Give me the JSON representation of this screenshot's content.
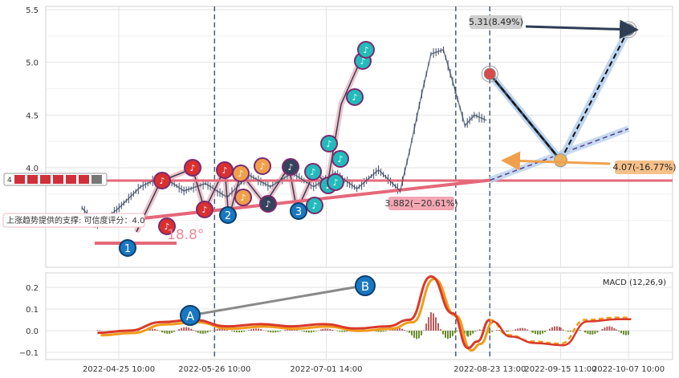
{
  "chart_data": [
    {
      "type": "line",
      "panel": "price",
      "title": "",
      "xlabel": "",
      "ylabel": "",
      "ylim": [
        3.25,
        5.55
      ],
      "yticks": [
        4.0,
        4.5,
        5.0,
        5.5
      ],
      "yticklabels": [
        "4.0",
        "4.5",
        "5.0",
        "5.5"
      ],
      "grid": true,
      "series": [
        {
          "x": [
            "2022-04-13",
            "2022-04-18",
            "2022-04-25",
            "2022-05-02",
            "2022-05-09",
            "2022-05-16",
            "2022-05-23",
            "2022-05-30",
            "2022-06-06",
            "2022-06-13",
            "2022-06-20",
            "2022-06-27",
            "2022-07-04",
            "2022-07-11",
            "2022-07-18",
            "2022-07-25",
            "2022-07-28",
            "2022-08-01",
            "2022-08-04",
            "2022-08-08",
            "2022-08-11",
            "2022-08-15",
            "2022-08-18",
            "2022-08-22"
          ],
          "values": [
            3.62,
            3.45,
            3.62,
            3.82,
            3.92,
            3.78,
            3.85,
            3.72,
            3.93,
            3.82,
            3.95,
            3.82,
            3.95,
            3.8,
            3.98,
            3.78,
            4.15,
            4.7,
            5.08,
            5.12,
            4.82,
            4.4,
            4.5,
            4.45
          ]
        }
      ],
      "trend_lines": [
        {
          "x": [
            "2022-04-25",
            "2022-08-23 13:00"
          ],
          "values": [
            3.47,
            3.882
          ]
        },
        {
          "x": [
            "2022-08-23 13:00",
            "2022-10-07 10:00"
          ],
          "values": [
            3.882,
            4.37
          ]
        }
      ],
      "support_level": 3.9,
      "projection": [
        {
          "x": "2022-08-23 13:00",
          "y": 4.89
        },
        {
          "x": "2022-09-15 11:00",
          "y": 4.07
        },
        {
          "x": "2022-10-07 10:00",
          "y": 5.31
        }
      ],
      "annotations": {
        "target_high": "5.31(8.49%)",
        "target_low": "4.07(-16.77%)",
        "support_value": "3.882(−20.61%)",
        "support_text": "上涨趋势提供的支撑: 可信度评分：4.0",
        "angle_text": "18.8°",
        "legend_value": "4"
      },
      "wave_labels": [
        "1",
        "2",
        "3"
      ]
    },
    {
      "type": "line",
      "panel": "macd",
      "title": "",
      "legend": "MACD (12,26,9)",
      "ylim": [
        -0.13,
        0.28
      ],
      "yticks": [
        -0.1,
        0.0,
        0.1,
        0.2
      ],
      "yticklabels": [
        "−0.1",
        "0.0",
        "0.1",
        "0.2"
      ],
      "grid": true,
      "x_ticks": [
        "2022-04-25 10:00",
        "2022-05-26 10:00",
        "2022-07-01 14:00",
        "2022-08-23 13:00",
        "2022-09-15 11:00",
        "2022-10-07 10:00"
      ],
      "series": [
        {
          "name": "macd",
          "x": [
            "2022-04-18",
            "2022-04-28",
            "2022-05-09",
            "2022-05-19",
            "2022-05-30",
            "2022-06-10",
            "2022-06-20",
            "2022-06-30",
            "2022-07-11",
            "2022-07-21",
            "2022-07-28",
            "2022-08-04",
            "2022-08-11",
            "2022-08-16",
            "2022-08-19",
            "2022-08-23",
            "2022-08-29",
            "2022-09-06",
            "2022-09-15",
            "2022-09-23",
            "2022-10-03",
            "2022-10-07"
          ],
          "values": [
            -0.01,
            0.0,
            0.04,
            0.05,
            0.02,
            0.03,
            0.02,
            0.03,
            0.01,
            0.02,
            0.05,
            0.25,
            0.08,
            -0.08,
            -0.05,
            0.05,
            -0.02,
            -0.05,
            -0.06,
            0.05,
            0.06,
            0.06
          ]
        }
      ],
      "markers": [
        "A",
        "B"
      ]
    }
  ]
}
